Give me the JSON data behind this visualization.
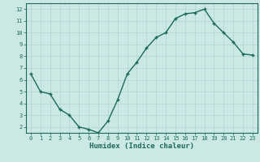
{
  "x": [
    0,
    1,
    2,
    3,
    4,
    5,
    6,
    7,
    8,
    9,
    10,
    11,
    12,
    13,
    14,
    15,
    16,
    17,
    18,
    19,
    20,
    21,
    22,
    23
  ],
  "y": [
    6.5,
    5.0,
    4.8,
    3.5,
    3.0,
    2.0,
    1.8,
    1.5,
    2.5,
    4.3,
    6.5,
    7.5,
    8.7,
    9.6,
    10.0,
    11.2,
    11.6,
    11.7,
    12.0,
    10.8,
    10.0,
    9.2,
    8.2,
    8.1
  ],
  "line_color": "#1a6b5a",
  "marker": "+",
  "bg_color": "#cce8e4",
  "grid_color": "#b0d4d0",
  "xlabel": "Humidex (Indice chaleur)",
  "xlabel_color": "#1a6b5a",
  "xlim": [
    -0.5,
    23.5
  ],
  "ylim": [
    1.5,
    12.5
  ],
  "yticks": [
    2,
    3,
    4,
    5,
    6,
    7,
    8,
    9,
    10,
    11,
    12
  ],
  "xticks": [
    0,
    1,
    2,
    3,
    4,
    5,
    6,
    7,
    8,
    9,
    10,
    11,
    12,
    13,
    14,
    15,
    16,
    17,
    18,
    19,
    20,
    21,
    22,
    23
  ],
  "tick_color": "#1a6b5a",
  "spine_color": "#1a6b5a",
  "linewidth": 1.0,
  "markersize": 3.5,
  "markeredgewidth": 1.0,
  "tick_fontsize": 5.0,
  "xlabel_fontsize": 6.5
}
